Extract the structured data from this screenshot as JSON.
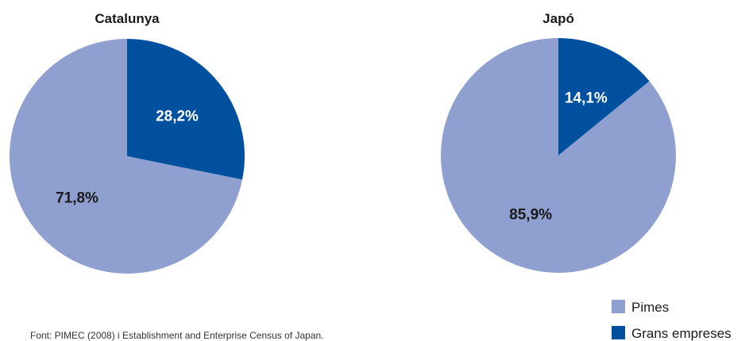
{
  "chart_data": [
    {
      "type": "pie",
      "title": "Catalunya",
      "slices": [
        {
          "name": "Grans empreses",
          "value": 28.2,
          "label": "28,2%",
          "color": "#0050A0",
          "label_color": "#ffffff"
        },
        {
          "name": "Pimes",
          "value": 71.8,
          "label": "71,8%",
          "color": "#8E9FD0",
          "label_color": "#1a1a1a"
        }
      ]
    },
    {
      "type": "pie",
      "title": "Japó",
      "slices": [
        {
          "name": "Grans empreses",
          "value": 14.1,
          "label": "14,1%",
          "color": "#0050A0",
          "label_color": "#ffffff"
        },
        {
          "name": "Pimes",
          "value": 85.9,
          "label": "85,9%",
          "color": "#8E9FD0",
          "label_color": "#1a1a1a"
        }
      ]
    }
  ],
  "legend": [
    {
      "label": "Pimes",
      "color": "#8E9FD0"
    },
    {
      "label": "Grans empreses",
      "color": "#0050A0"
    }
  ],
  "source": "Font: PIMEC (2008) i Establishment and Enterprise Census of Japan."
}
